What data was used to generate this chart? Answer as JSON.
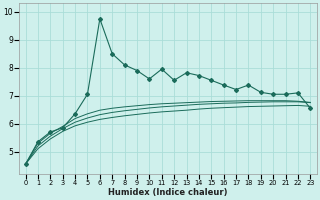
{
  "xlabel": "Humidex (Indice chaleur)",
  "bg_color": "#cff0ec",
  "grid_color": "#aaddd8",
  "line_color": "#1a6b5a",
  "xlim": [
    -0.5,
    23.5
  ],
  "ylim": [
    4.2,
    10.3
  ],
  "yticks": [
    5,
    6,
    7,
    8,
    9,
    10
  ],
  "xticks": [
    0,
    1,
    2,
    3,
    4,
    5,
    6,
    7,
    8,
    9,
    10,
    11,
    12,
    13,
    14,
    15,
    16,
    17,
    18,
    19,
    20,
    21,
    22,
    23
  ],
  "main_x": [
    0,
    1,
    2,
    3,
    4,
    5,
    6,
    7,
    8,
    9,
    10,
    11,
    12,
    13,
    14,
    15,
    16,
    17,
    18,
    19,
    20,
    21,
    22,
    23
  ],
  "main_y": [
    4.55,
    5.35,
    5.7,
    5.85,
    6.35,
    7.05,
    9.75,
    8.5,
    8.1,
    7.9,
    7.6,
    7.95,
    7.55,
    7.82,
    7.72,
    7.55,
    7.38,
    7.22,
    7.38,
    7.12,
    7.05,
    7.05,
    7.1,
    6.55
  ],
  "curve1_x": [
    0,
    1,
    2,
    3,
    4,
    5,
    6,
    7,
    8,
    9,
    10,
    11,
    12,
    13,
    14,
    15,
    16,
    17,
    18,
    19,
    20,
    21,
    22,
    23
  ],
  "curve1_y": [
    4.55,
    5.1,
    5.45,
    5.72,
    5.92,
    6.05,
    6.15,
    6.22,
    6.28,
    6.33,
    6.38,
    6.42,
    6.45,
    6.48,
    6.52,
    6.55,
    6.57,
    6.59,
    6.61,
    6.62,
    6.63,
    6.64,
    6.65,
    6.62
  ],
  "curve2_x": [
    0,
    1,
    2,
    3,
    4,
    5,
    6,
    7,
    8,
    9,
    10,
    11,
    12,
    13,
    14,
    15,
    16,
    17,
    18,
    19,
    20,
    21,
    22,
    23
  ],
  "curve2_y": [
    4.55,
    5.2,
    5.55,
    5.82,
    6.05,
    6.2,
    6.32,
    6.4,
    6.46,
    6.51,
    6.56,
    6.6,
    6.63,
    6.66,
    6.69,
    6.71,
    6.73,
    6.74,
    6.76,
    6.77,
    6.78,
    6.78,
    6.78,
    6.75
  ],
  "curve3_x": [
    0,
    1,
    2,
    3,
    4,
    5,
    6,
    7,
    8,
    9,
    10,
    11,
    12,
    13,
    14,
    15,
    16,
    17,
    18,
    19,
    20,
    21,
    22,
    23
  ],
  "curve3_y": [
    4.55,
    5.3,
    5.65,
    5.9,
    6.18,
    6.35,
    6.48,
    6.55,
    6.6,
    6.64,
    6.68,
    6.71,
    6.73,
    6.75,
    6.77,
    6.79,
    6.8,
    6.81,
    6.82,
    6.82,
    6.82,
    6.82,
    6.8,
    6.76
  ]
}
